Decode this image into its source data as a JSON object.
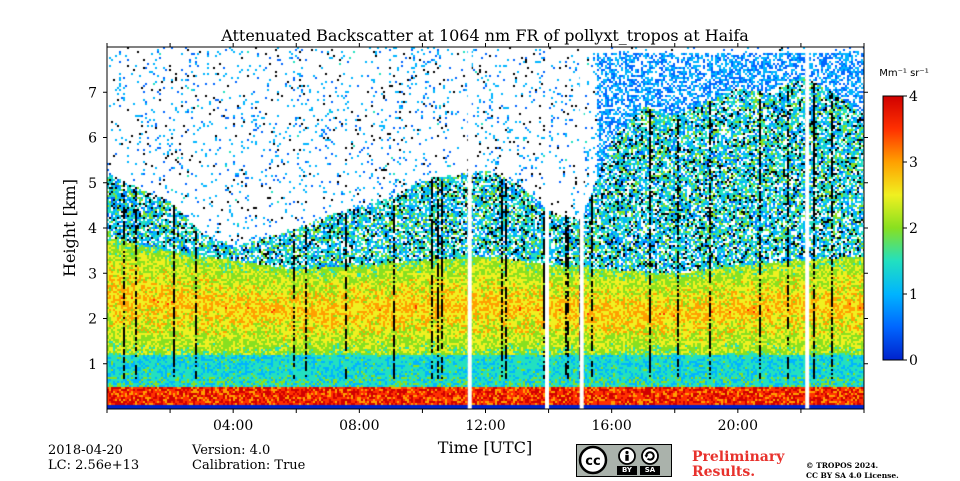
{
  "chart_data": {
    "type": "heatmap",
    "title": "Attenuated Backscatter at 1064 nm FR of pollyxt_tropos at Haifa",
    "xlabel": "Time [UTC]",
    "ylabel": "Height [km]",
    "xlim": [
      0,
      24
    ],
    "ylim": [
      0,
      8
    ],
    "xticks": [
      0,
      2,
      4,
      6,
      8,
      10,
      12,
      14,
      16,
      18,
      20,
      22,
      24
    ],
    "xtick_labels": [
      "04:00",
      "08:00",
      "12:00",
      "16:00",
      "20:00"
    ],
    "xtick_label_values": [
      4,
      8,
      12,
      16,
      20
    ],
    "yticks": [
      1,
      2,
      3,
      4,
      5,
      6,
      7
    ],
    "ytick_labels": [
      "1",
      "2",
      "3",
      "4",
      "5",
      "6",
      "7"
    ],
    "colorbar": {
      "label": "Mm⁻¹ sr⁻¹",
      "range": [
        0,
        4
      ],
      "ticks": [
        "0",
        "1",
        "2",
        "3",
        "4"
      ],
      "colormap": [
        "#0022cc",
        "#0066ff",
        "#00b4ff",
        "#22e0c0",
        "#88e020",
        "#f0f020",
        "#ffa000",
        "#ff3000",
        "#d00000"
      ]
    },
    "cloud_top_km": [
      [
        0,
        5.2
      ],
      [
        1,
        4.9
      ],
      [
        2,
        4.6
      ],
      [
        3,
        3.9
      ],
      [
        4,
        3.6
      ],
      [
        5,
        3.8
      ],
      [
        6,
        4.0
      ],
      [
        7,
        4.3
      ],
      [
        8,
        4.5
      ],
      [
        9,
        4.7
      ],
      [
        10,
        5.1
      ],
      [
        11,
        5.2
      ],
      [
        12,
        5.3
      ],
      [
        13,
        5.0
      ],
      [
        14,
        4.4
      ],
      [
        15,
        4.2
      ],
      [
        16,
        6.0
      ],
      [
        17,
        6.7
      ],
      [
        18,
        6.5
      ],
      [
        19,
        6.8
      ],
      [
        20,
        7.1
      ],
      [
        21,
        7.0
      ],
      [
        22,
        7.4
      ],
      [
        23,
        7.0
      ],
      [
        24,
        6.5
      ]
    ],
    "aerosol_layer_top_km": [
      [
        0,
        3.8
      ],
      [
        2,
        3.5
      ],
      [
        4,
        3.3
      ],
      [
        6,
        3.1
      ],
      [
        8,
        3.2
      ],
      [
        10,
        3.3
      ],
      [
        12,
        3.4
      ],
      [
        14,
        3.2
      ],
      [
        16,
        3.1
      ],
      [
        18,
        3.0
      ],
      [
        20,
        3.2
      ],
      [
        22,
        3.3
      ],
      [
        24,
        3.4
      ]
    ],
    "data_gaps_hours": [
      11.5,
      13.95,
      15.05,
      22.2
    ]
  },
  "info": {
    "date": "2018-04-20",
    "lc": "LC: 2.56e+13",
    "version": "Version: 4.0",
    "calibration": "Calibration: True",
    "preliminary_line1": "Preliminary",
    "preliminary_line2": "Results.",
    "copyright_line1": "© TROPOS 2024.",
    "copyright_line2": "CC BY SA 4.0 License.",
    "cc_by": "BY",
    "cc_sa": "SA"
  }
}
